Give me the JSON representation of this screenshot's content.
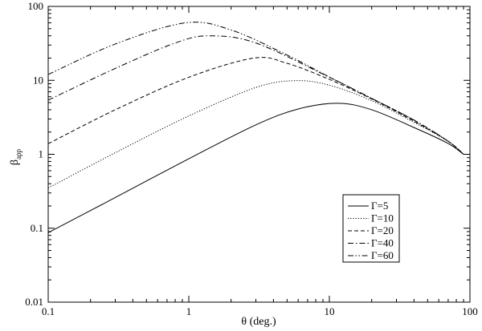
{
  "chart_data": {
    "type": "line",
    "title": "",
    "xlabel": "θ (deg.)",
    "ylabel_main": "β",
    "ylabel_sub": "app",
    "xscale": "log",
    "yscale": "log",
    "xlim": [
      0.1,
      100
    ],
    "ylim": [
      0.01,
      100
    ],
    "x_ticks": [
      {
        "value": 0.1,
        "label": "0.1"
      },
      {
        "value": 1,
        "label": "1"
      },
      {
        "value": 10,
        "label": "10"
      },
      {
        "value": 100,
        "label": "100"
      }
    ],
    "y_ticks": [
      {
        "value": 0.01,
        "label": "0.01"
      },
      {
        "value": 0.1,
        "label": "0.1"
      },
      {
        "value": 1,
        "label": "1"
      },
      {
        "value": 10,
        "label": "10"
      },
      {
        "value": 100,
        "label": "100"
      }
    ],
    "grid": false,
    "legend_position": "bottom-right",
    "series": [
      {
        "name": "Γ=5",
        "gamma": 5,
        "dash": "none",
        "points": [
          [
            0.1,
            0.087
          ],
          [
            0.3,
            0.26
          ],
          [
            1,
            0.87
          ],
          [
            3,
            2.5
          ],
          [
            6,
            4.1
          ],
          [
            11.5,
            4.9
          ],
          [
            20,
            4.0
          ],
          [
            40,
            2.3
          ],
          [
            70,
            1.4
          ],
          [
            90,
            1.0
          ]
        ]
      },
      {
        "name": "Γ=10",
        "gamma": 10,
        "dash": "dotted",
        "points": [
          [
            0.1,
            0.35
          ],
          [
            0.3,
            1.05
          ],
          [
            1,
            3.3
          ],
          [
            3,
            8.0
          ],
          [
            5.7,
            9.9
          ],
          [
            10,
            8.6
          ],
          [
            20,
            5.3
          ],
          [
            40,
            2.7
          ],
          [
            70,
            1.5
          ],
          [
            90,
            1.0
          ]
        ]
      },
      {
        "name": "Γ=20",
        "gamma": 20,
        "dash": "dashed",
        "points": [
          [
            0.1,
            1.39
          ],
          [
            0.3,
            4.0
          ],
          [
            1,
            11.0
          ],
          [
            2.9,
            20.0
          ],
          [
            5,
            17.0
          ],
          [
            10,
            10.3
          ],
          [
            20,
            5.6
          ],
          [
            40,
            2.8
          ],
          [
            70,
            1.5
          ],
          [
            90,
            1.0
          ]
        ]
      },
      {
        "name": "Γ=40",
        "gamma": 40,
        "dash": "dashdot",
        "points": [
          [
            0.1,
            5.4
          ],
          [
            0.3,
            14.5
          ],
          [
            0.8,
            32.0
          ],
          [
            1.4,
            40.0
          ],
          [
            3,
            32.0
          ],
          [
            10,
            11.0
          ],
          [
            20,
            5.7
          ],
          [
            40,
            2.9
          ],
          [
            70,
            1.5
          ],
          [
            90,
            1.0
          ]
        ]
      },
      {
        "name": "Γ=60",
        "gamma": 60,
        "dash": "dashdotdot",
        "points": [
          [
            0.1,
            12.0
          ],
          [
            0.3,
            31.0
          ],
          [
            0.95,
            60.0
          ],
          [
            2,
            48.0
          ],
          [
            5,
            22.0
          ],
          [
            10,
            11.1
          ],
          [
            20,
            5.7
          ],
          [
            40,
            2.9
          ],
          [
            70,
            1.5
          ],
          [
            90,
            1.0
          ]
        ]
      }
    ]
  }
}
